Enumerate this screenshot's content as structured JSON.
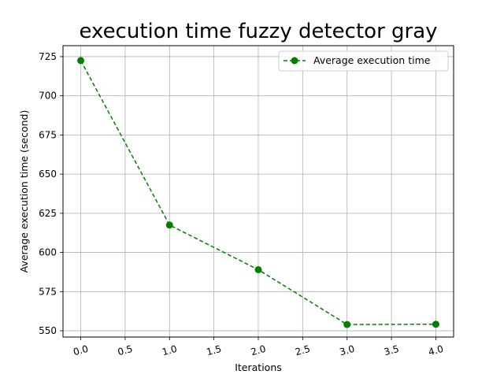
{
  "chart_data": {
    "type": "line",
    "title": "execution time fuzzy detector gray",
    "xlabel": "Iterations",
    "ylabel": "Average execution time (second)",
    "x": [
      0,
      1,
      2,
      3,
      4
    ],
    "series": [
      {
        "name": "Average execution time",
        "values": [
          722.5,
          617.5,
          589.0,
          554.0,
          554.2
        ],
        "color": "#008000",
        "line_style": "dashed",
        "marker": "circle"
      }
    ],
    "xlim": [
      -0.2,
      4.2
    ],
    "ylim": [
      546,
      732
    ],
    "xticks": [
      0.0,
      0.5,
      1.0,
      1.5,
      2.0,
      2.5,
      3.0,
      3.5,
      4.0
    ],
    "xtick_labels": [
      "0.0",
      "0.5",
      "1.0",
      "1.5",
      "2.0",
      "2.5",
      "3.0",
      "3.5",
      "4.0"
    ],
    "yticks": [
      550,
      575,
      600,
      625,
      650,
      675,
      700,
      725
    ],
    "ytick_labels": [
      "550",
      "575",
      "600",
      "625",
      "650",
      "675",
      "700",
      "725"
    ],
    "grid": true,
    "legend_position": "top-right"
  }
}
